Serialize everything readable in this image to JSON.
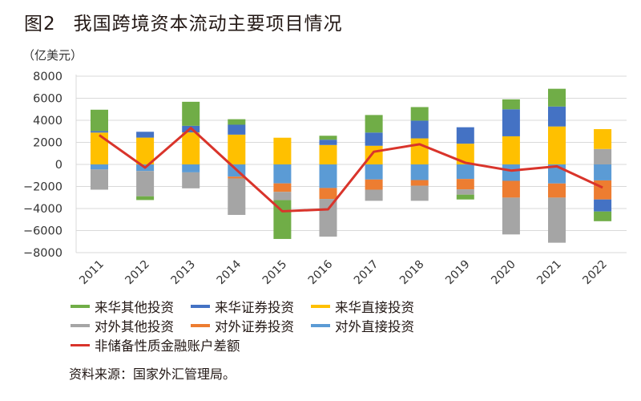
{
  "header": {
    "figure_no": "图2",
    "title": "我国跨境资本流动主要项目情况"
  },
  "source": "资料来源：国家外汇管理局。",
  "chart_data": {
    "type": "bar",
    "stacked": true,
    "title": "我国跨境资本流动主要项目情况",
    "ylabel": "（亿美元）",
    "xlabel": "",
    "ylim": [
      -8000,
      8000
    ],
    "yticks": [
      8000,
      6000,
      4000,
      2000,
      0,
      -2000,
      -4000,
      -6000,
      -8000
    ],
    "ytick_labels": [
      "8000",
      "6000",
      "4000",
      "2000",
      "0",
      "−2000",
      "−4000",
      "−6000",
      "−8000"
    ],
    "grid": true,
    "legend_position": "bottom",
    "categories": [
      "2011",
      "2012",
      "2013",
      "2014",
      "2015",
      "2016",
      "2017",
      "2018",
      "2019",
      "2020",
      "2021",
      "2022"
    ],
    "series": [
      {
        "name": "来华其他投资",
        "key": "inflow_other",
        "color": "#70AD47",
        "values": [
          1930,
          -340,
          2180,
          500,
          -3520,
          360,
          1590,
          1230,
          -440,
          900,
          1610,
          -880
        ]
      },
      {
        "name": "来华证券投资",
        "key": "inflow_portfolio",
        "color": "#4472C4",
        "values": [
          140,
          530,
          600,
          900,
          0,
          480,
          1200,
          1610,
          1490,
          2450,
          1810,
          -1090
        ]
      },
      {
        "name": "来华直接投资",
        "key": "inflow_direct",
        "color": "#FFC000",
        "values": [
          2890,
          2430,
          2900,
          2700,
          2420,
          1760,
          1690,
          2360,
          1880,
          2550,
          3440,
          1800
        ]
      },
      {
        "name": "对外其他投资",
        "key": "outflow_other",
        "color": "#A5A5A5",
        "values": [
          -1830,
          -2290,
          -1450,
          -3310,
          -750,
          -3420,
          -1010,
          -1370,
          -480,
          -3340,
          -4090,
          1400
        ]
      },
      {
        "name": "对外证券投资",
        "key": "outflow_portfolio",
        "color": "#ED7D31",
        "values": [
          0,
          0,
          0,
          -160,
          -770,
          -990,
          -920,
          -510,
          -940,
          -1520,
          -1280,
          -1730
        ]
      },
      {
        "name": "对外直接投资",
        "key": "outflow_direct",
        "color": "#5B9BD5",
        "values": [
          -460,
          -600,
          -720,
          -1110,
          -1720,
          -2140,
          -1370,
          -1420,
          -1320,
          -1490,
          -1730,
          -1450
        ]
      }
    ],
    "line_series": {
      "name": "非储备性质金融账户差额",
      "color": "#D9342B",
      "values": [
        2650,
        -290,
        3300,
        -500,
        -4250,
        -4070,
        1150,
        1830,
        150,
        -560,
        -170,
        -2100
      ]
    }
  },
  "legend": {
    "rows": [
      [
        {
          "label": "来华其他投资",
          "color": "#70AD47",
          "kind": "bar"
        },
        {
          "label": "来华证券投资",
          "color": "#4472C4",
          "kind": "bar"
        },
        {
          "label": "来华直接投资",
          "color": "#FFC000",
          "kind": "bar"
        }
      ],
      [
        {
          "label": "对外其他投资",
          "color": "#A5A5A5",
          "kind": "bar"
        },
        {
          "label": "对外证券投资",
          "color": "#ED7D31",
          "kind": "bar"
        },
        {
          "label": "对外直接投资",
          "color": "#5B9BD5",
          "kind": "bar"
        }
      ],
      [
        {
          "label": "非储备性质金融账户差额",
          "color": "#D9342B",
          "kind": "line"
        }
      ]
    ]
  }
}
